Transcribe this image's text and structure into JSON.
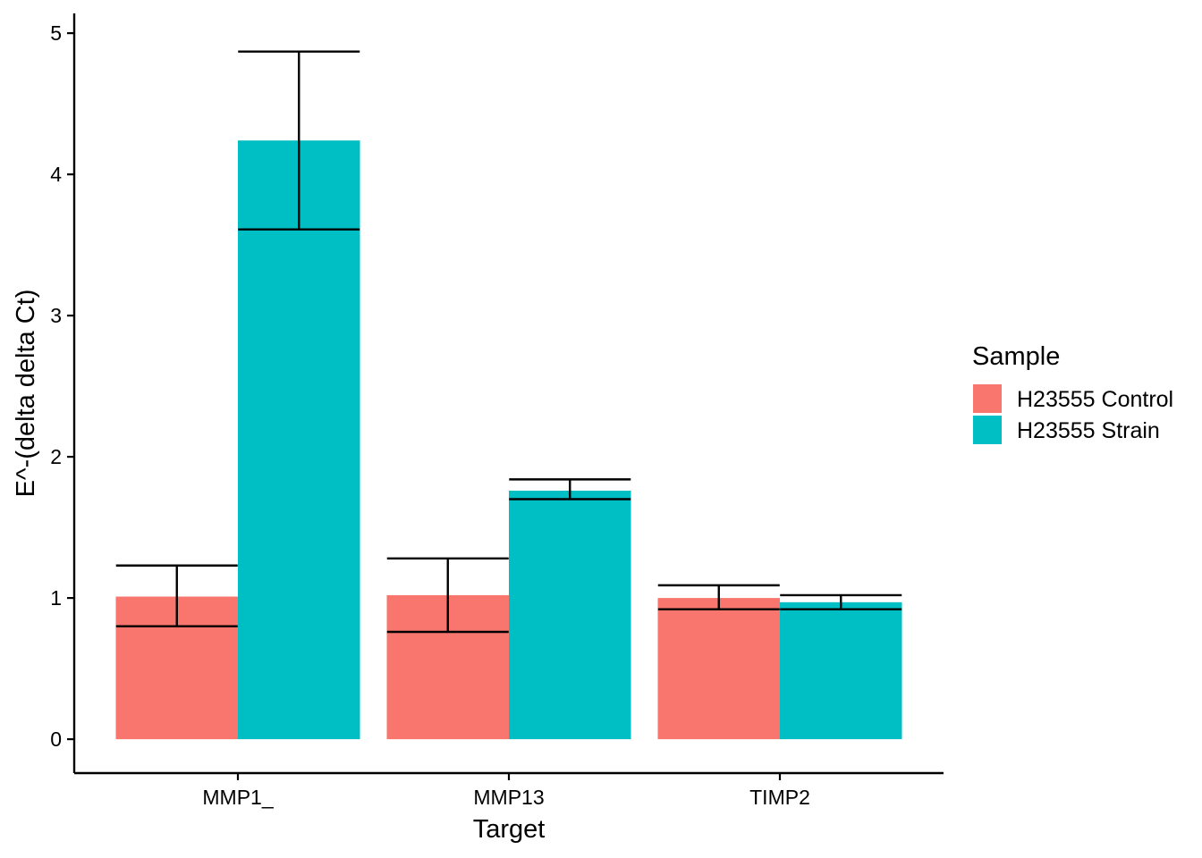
{
  "chart_data": {
    "type": "bar",
    "categories": [
      "MMP1_",
      "MMP13",
      "TIMP2"
    ],
    "series": [
      {
        "name": "H23555 Control",
        "color": "#F8766D",
        "values": [
          1.01,
          1.02,
          1.0
        ],
        "error_low": [
          0.8,
          0.76,
          0.92
        ],
        "error_high": [
          1.23,
          1.28,
          1.09
        ]
      },
      {
        "name": "H23555 Strain",
        "color": "#00BFC4",
        "values": [
          4.24,
          1.76,
          0.97
        ],
        "error_low": [
          3.61,
          1.7,
          0.92
        ],
        "error_high": [
          4.87,
          1.84,
          1.02
        ]
      }
    ],
    "xlabel": "Target",
    "ylabel": "E^-(delta delta Ct)",
    "ylim": [
      -0.24,
      5.14
    ],
    "yticks": [
      0,
      1,
      2,
      3,
      4,
      5
    ],
    "grid": false,
    "legend": {
      "title": "Sample",
      "position": "right"
    }
  }
}
